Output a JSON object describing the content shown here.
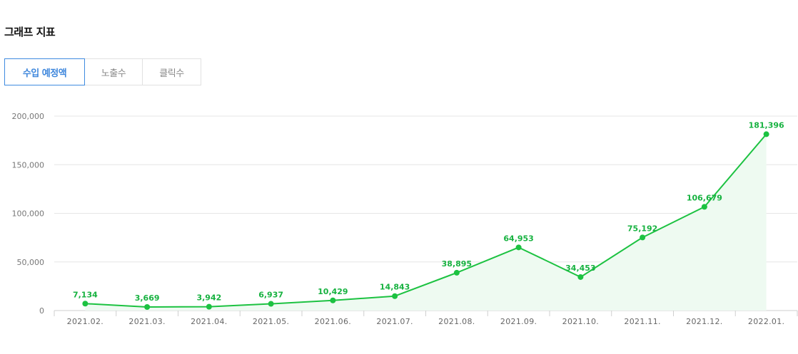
{
  "section_title": "그래프 지표",
  "tabs": [
    {
      "label": "수입 예정액",
      "active": true
    },
    {
      "label": "노출수",
      "active": false
    },
    {
      "label": "클릭수",
      "active": false
    }
  ],
  "colors": {
    "line": "#1cc241",
    "area": "#eefaf1",
    "label": "#17b240",
    "active_tab": "#3d86dc",
    "grid": "#e6e6e6"
  },
  "chart_data": {
    "type": "line",
    "title": "",
    "xlabel": "",
    "ylabel": "",
    "categories": [
      "2021.02.",
      "2021.03.",
      "2021.04.",
      "2021.05.",
      "2021.06.",
      "2021.07.",
      "2021.08.",
      "2021.09.",
      "2021.10.",
      "2021.11.",
      "2021.12.",
      "2022.01."
    ],
    "values": [
      7134,
      3669,
      3942,
      6937,
      10429,
      14843,
      38895,
      64953,
      34453,
      75192,
      106679,
      181396
    ],
    "value_labels": [
      "7,134",
      "3,669",
      "3,942",
      "6,937",
      "10,429",
      "14,843",
      "38,895",
      "64,953",
      "34,453",
      "75,192",
      "106,679",
      "181,396"
    ],
    "yticks": [
      0,
      50000,
      100000,
      150000,
      200000
    ],
    "ytick_labels": [
      "0",
      "50,000",
      "100,000",
      "150,000",
      "200,000"
    ],
    "ylim": [
      0,
      200000
    ],
    "grid": true,
    "area_fill": true
  }
}
